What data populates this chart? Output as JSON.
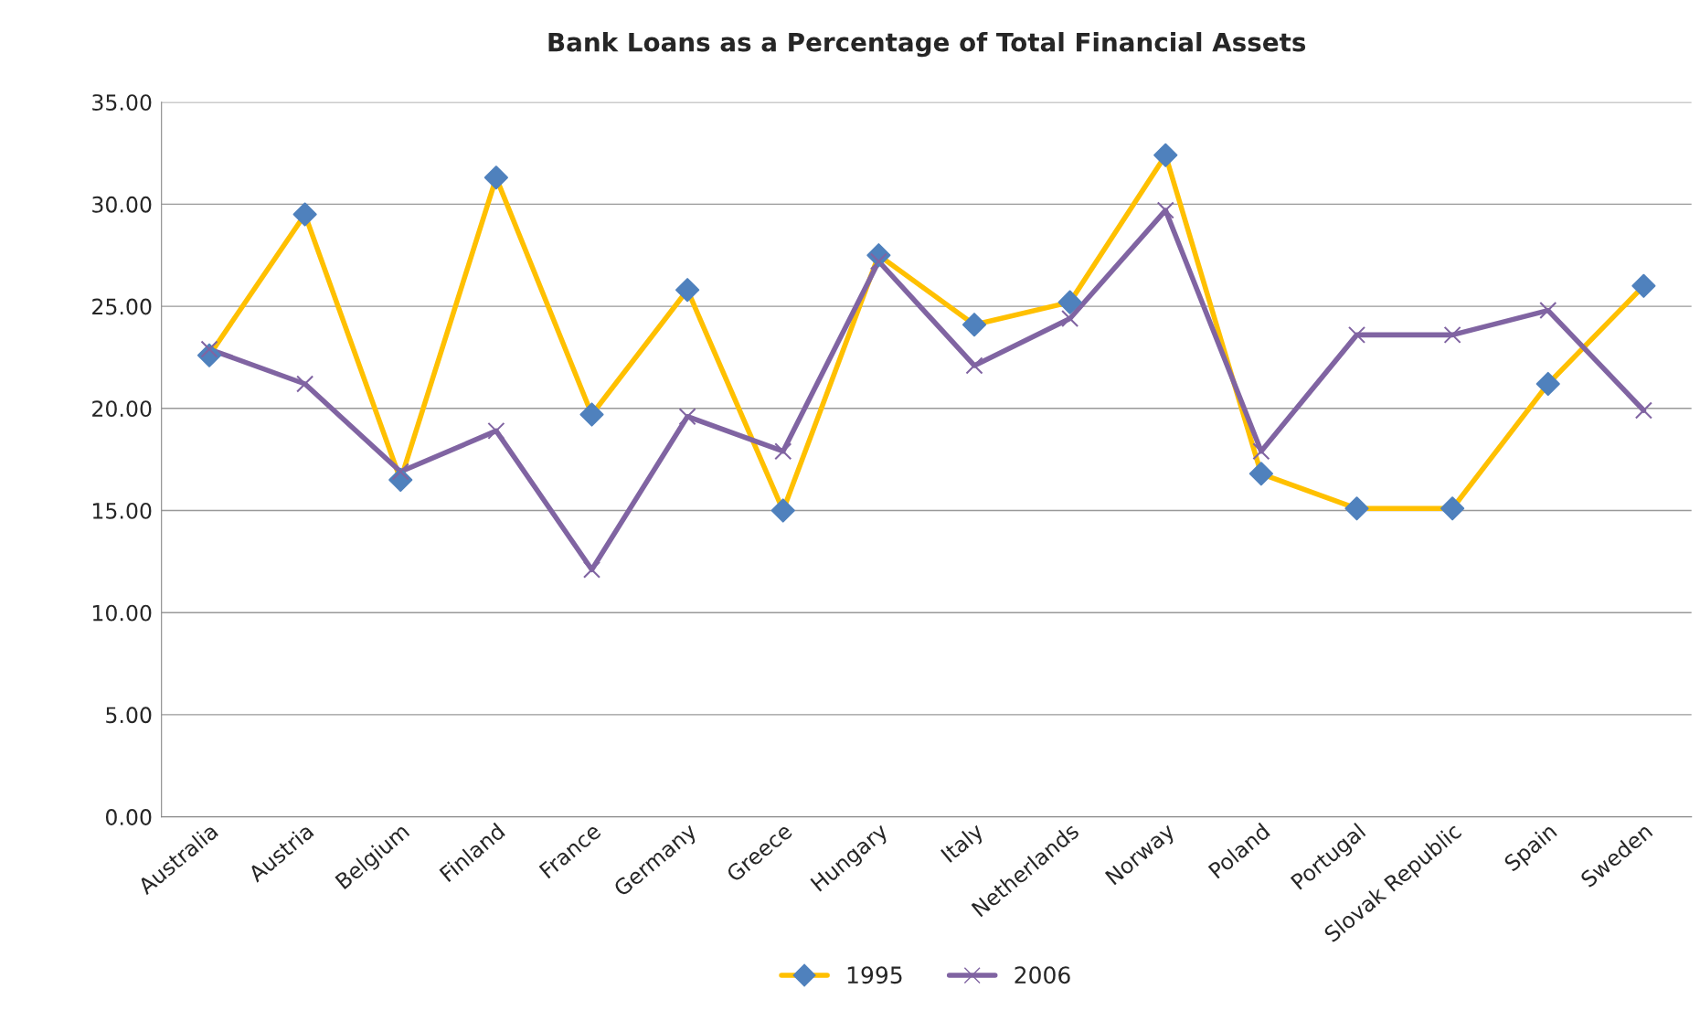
{
  "chart_data": {
    "type": "line",
    "title": "Bank Loans as a Percentage of Total Financial Assets",
    "categories": [
      "Australia",
      "Austria",
      "Belgium",
      "Finland",
      "France",
      "Germany",
      "Greece",
      "Hungary",
      "Italy",
      "Netherlands",
      "Norway",
      "Poland",
      "Portugal",
      "Slovak Republic",
      "Spain",
      "Sweden"
    ],
    "series": [
      {
        "name": "1995",
        "color": "#ffc000",
        "marker": "diamond",
        "values": [
          22.6,
          29.5,
          16.5,
          31.3,
          19.7,
          25.8,
          15.0,
          27.5,
          24.1,
          25.2,
          32.4,
          16.8,
          15.1,
          15.1,
          21.2,
          26.0
        ]
      },
      {
        "name": "2006",
        "color": "#8064a2",
        "marker": "cross",
        "values": [
          22.9,
          21.2,
          16.9,
          18.9,
          12.1,
          19.6,
          17.9,
          27.2,
          22.1,
          24.4,
          29.7,
          17.9,
          23.6,
          23.6,
          24.8,
          19.9
        ]
      }
    ],
    "ylim": [
      0,
      35
    ],
    "yticks": [
      {
        "value": 0,
        "label": "0.00"
      },
      {
        "value": 5,
        "label": "5.00"
      },
      {
        "value": 10,
        "label": "10.00"
      },
      {
        "value": 15,
        "label": "15.00"
      },
      {
        "value": 20,
        "label": "20.00"
      },
      {
        "value": 25,
        "label": "25.00"
      },
      {
        "value": 30,
        "label": "30.00"
      },
      {
        "value": 35,
        "label": "35.00"
      }
    ],
    "grid": "y",
    "legend": "bottom",
    "line_style": "solid"
  }
}
